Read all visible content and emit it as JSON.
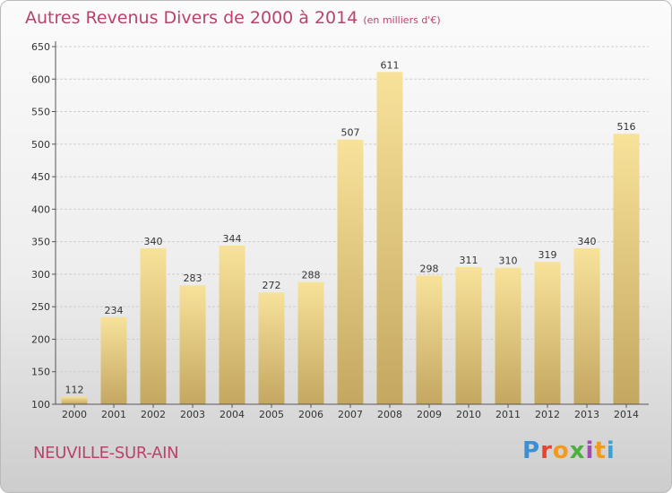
{
  "title": "Autres Revenus Divers de 2000 à 2014",
  "subtitle": "(en milliers d'€)",
  "place_name": "NEUVILLE-SUR-AIN",
  "logo_text": "Proxiti",
  "colors": {
    "accent": "#b8436d",
    "bar_light": "#f8e29a",
    "bar_dark": "#c4a760",
    "grid": "#cfcfcf"
  },
  "chart_data": {
    "type": "bar",
    "title": "Autres Revenus Divers de 2000 à 2014",
    "subtitle": "(en milliers d'€)",
    "xlabel": "",
    "ylabel": "",
    "categories": [
      "2000",
      "2001",
      "2002",
      "2003",
      "2004",
      "2005",
      "2006",
      "2007",
      "2008",
      "2009",
      "2010",
      "2011",
      "2012",
      "2013",
      "2014"
    ],
    "values": [
      112,
      234,
      340,
      283,
      344,
      272,
      288,
      507,
      611,
      298,
      311,
      310,
      319,
      340,
      516
    ],
    "ylim": [
      100,
      650
    ],
    "yticks": [
      100,
      150,
      200,
      250,
      300,
      350,
      400,
      450,
      500,
      550,
      600,
      650
    ],
    "grid": true,
    "legend": "none"
  }
}
